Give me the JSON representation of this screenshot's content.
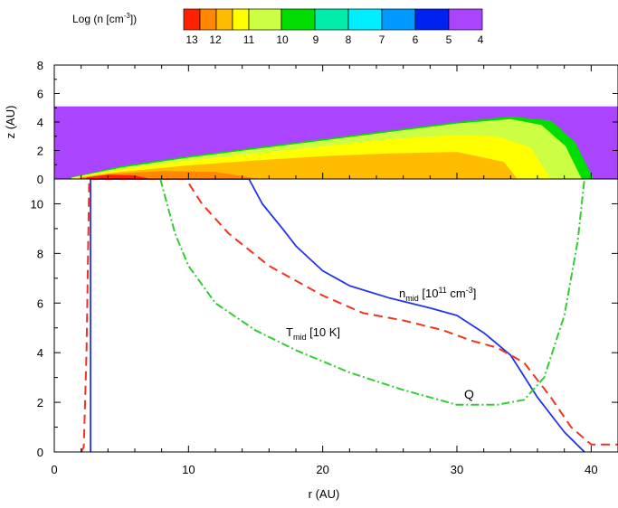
{
  "colorbar": {
    "label": "Log (n [cm⁻³])",
    "levels": [
      "13",
      "12",
      "11",
      "10",
      "9",
      "8",
      "7",
      "6",
      "5",
      "4"
    ],
    "colors": [
      "#ff2200",
      "#ff8800",
      "#ffbb00",
      "#ffff00",
      "#ccff44",
      "#00dd00",
      "#00eeaa",
      "#00eeff",
      "#0099ff",
      "#0022ee",
      "#aa44ff"
    ]
  },
  "chart_data": [
    {
      "type": "heatmap",
      "ylabel": "z (AU)",
      "xlim": [
        0,
        42
      ],
      "ylim": [
        0,
        8
      ],
      "yticks": [
        "0",
        "2",
        "4",
        "6",
        "8"
      ],
      "box_z_max": 5.1,
      "contours": [
        {
          "level": 4,
          "color": "#aa44ff",
          "fill": "background"
        },
        {
          "level": 9,
          "color": "#00dd00",
          "r": [
            1.2,
            5,
            10,
            15,
            20,
            25,
            30,
            34,
            37,
            38.8,
            40.2
          ],
          "z_top": [
            0.1,
            0.9,
            1.6,
            2.2,
            2.8,
            3.4,
            4.0,
            4.4,
            4.1,
            2.6,
            0
          ]
        },
        {
          "level": 10,
          "color": "#ccff44",
          "r": [
            1.3,
            5,
            10,
            15,
            20,
            25,
            30,
            34,
            36.3,
            38.1,
            39.3
          ],
          "z_top": [
            0.1,
            0.8,
            1.5,
            2.1,
            2.7,
            3.3,
            3.9,
            4.2,
            3.8,
            2.3,
            0
          ]
        },
        {
          "level": 11,
          "color": "#ffff00",
          "r": [
            1.5,
            5,
            10,
            15,
            20,
            25,
            30,
            33,
            35.5,
            37
          ],
          "z_top": [
            0.1,
            0.7,
            1.3,
            1.8,
            2.3,
            2.8,
            3.1,
            3.0,
            2.2,
            0
          ]
        },
        {
          "level": 12,
          "color": "#ffbb00",
          "r": [
            1.8,
            5,
            10,
            15,
            20,
            25,
            30,
            33.5,
            34.5
          ],
          "z_top": [
            0.1,
            0.5,
            0.95,
            1.3,
            1.6,
            1.8,
            1.9,
            1.2,
            0
          ]
        },
        {
          "level": 12.5,
          "color": "#ff8800",
          "r": [
            2,
            4,
            8,
            12,
            15.3
          ],
          "z_top": [
            0.1,
            0.35,
            0.55,
            0.5,
            0
          ]
        },
        {
          "level": 13,
          "color": "#ff2200",
          "r": [
            2.4,
            4,
            6,
            7.2
          ],
          "z_top": [
            0.1,
            0.3,
            0.25,
            0
          ]
        }
      ]
    },
    {
      "type": "line",
      "xlabel": "r (AU)",
      "xlim": [
        0,
        42
      ],
      "ylim": [
        0,
        11
      ],
      "xticks": [
        "0",
        "10",
        "20",
        "30",
        "40"
      ],
      "yticks": [
        "0",
        "2",
        "4",
        "6",
        "8",
        "10"
      ],
      "series": [
        {
          "name": "n_mid [10¹¹ cm⁻³]",
          "color": "#2233ee",
          "style": "solid",
          "x": [
            2.7,
            2.7,
            2.8,
            14.5,
            15.5,
            17,
            18,
            19,
            20,
            22,
            25,
            28,
            30,
            32,
            34,
            36,
            38,
            39.5
          ],
          "y": [
            0,
            11,
            11,
            11,
            10.0,
            9.0,
            8.3,
            7.8,
            7.3,
            6.7,
            6.2,
            5.8,
            5.5,
            4.8,
            3.9,
            2.2,
            0.8,
            0
          ]
        },
        {
          "name": "T_mid [10 K]",
          "color": "#ee3322",
          "style": "dashed",
          "x": [
            2,
            2.2,
            2.4,
            2.6,
            9.8,
            11,
            13,
            16,
            20,
            23,
            26,
            29,
            31,
            33,
            35,
            37,
            38.5,
            40,
            42
          ],
          "y": [
            0,
            0.2,
            4,
            11,
            11,
            10.0,
            8.8,
            7.5,
            6.3,
            5.6,
            5.3,
            4.9,
            4.5,
            4.2,
            3.6,
            2.2,
            1.0,
            0.3,
            0.3
          ]
        },
        {
          "name": "Q",
          "color": "#33cc33",
          "style": "dashdot",
          "x": [
            7.9,
            9,
            10,
            12,
            15,
            18,
            22,
            26,
            30,
            33,
            35,
            36.5,
            38,
            39,
            39.5
          ],
          "y": [
            11,
            8.8,
            7.5,
            6.0,
            4.9,
            4.1,
            3.2,
            2.5,
            1.9,
            1.9,
            2.1,
            3.0,
            5.5,
            8.5,
            11
          ]
        }
      ],
      "annotations": [
        {
          "series": "n_mid",
          "base": "n",
          "sub": "mid",
          "text": " [10",
          "sup": "11",
          "after": " cm",
          "sup2": "-3",
          "end": "]"
        },
        {
          "series": "T_mid",
          "base": "T",
          "sub": "mid",
          "text": " [10 K]"
        },
        {
          "series": "Q",
          "text": "Q"
        }
      ]
    }
  ]
}
